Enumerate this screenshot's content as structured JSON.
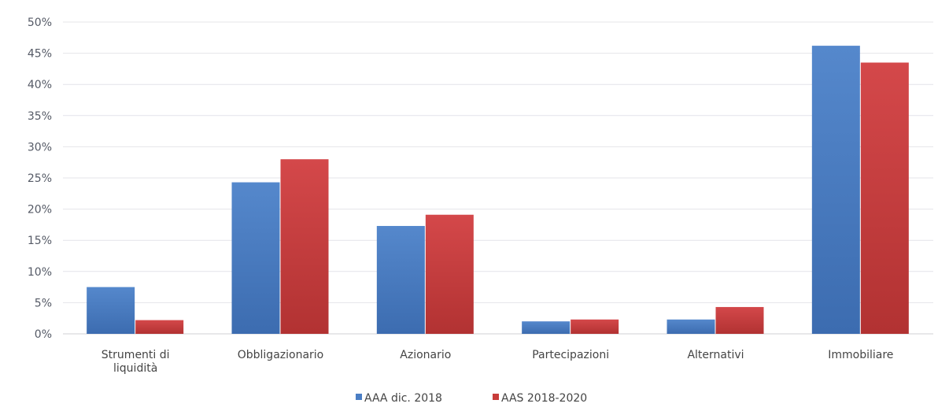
{
  "chart_data": {
    "type": "bar",
    "categories": [
      [
        "Strumenti di",
        "liquidità"
      ],
      [
        "Obbligazionario"
      ],
      [
        "Azionario"
      ],
      [
        "Partecipazioni"
      ],
      [
        "Alternativi"
      ],
      [
        "Immobiliare"
      ]
    ],
    "series": [
      {
        "name": "AAA dic. 2018",
        "values": [
          7.5,
          24.3,
          17.3,
          2.0,
          2.3,
          46.2
        ],
        "color": "#4a7ec4"
      },
      {
        "name": "AAS 2018-2020",
        "values": [
          2.2,
          28.0,
          19.1,
          2.3,
          4.3,
          43.5
        ],
        "color": "#c83c3a"
      }
    ],
    "yticks": [
      "0%",
      "5%",
      "10%",
      "15%",
      "20%",
      "25%",
      "30%",
      "35%",
      "40%",
      "45%",
      "50%"
    ],
    "ylim": [
      0,
      50
    ],
    "grid": true,
    "legend_position": "bottom-center"
  }
}
